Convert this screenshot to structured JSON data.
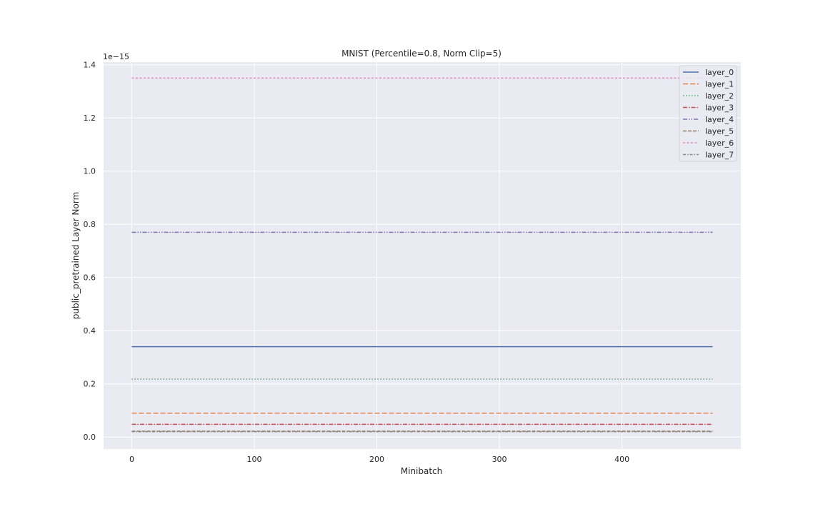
{
  "chart_data": {
    "type": "line",
    "title": "MNIST (Percentile=0.8, Norm Clip=5)",
    "xlabel": "Minibatch",
    "ylabel": "public_pretrained Layer Norm",
    "y_offset_text": "1e−15",
    "xlim": [
      -23,
      497
    ],
    "ylim": [
      -0.045,
      1.41
    ],
    "x_ticks": [
      0,
      100,
      200,
      300,
      400
    ],
    "y_ticks": [
      0.0,
      0.2,
      0.4,
      0.6,
      0.8,
      1.0,
      1.2,
      1.4
    ],
    "y_tick_labels": [
      "0.0",
      "0.2",
      "0.4",
      "0.6",
      "0.8",
      "1.0",
      "1.2",
      "1.4"
    ],
    "x_range": [
      0,
      474
    ],
    "grid": true,
    "legend_position": "top-right",
    "series": [
      {
        "name": "layer_0",
        "value": 0.34,
        "color": "#4c72b0",
        "dash": "solid"
      },
      {
        "name": "layer_1",
        "value": 0.09,
        "color": "#dd8452",
        "dash": "dashed"
      },
      {
        "name": "layer_2",
        "value": 0.218,
        "color": "#55a868",
        "dash": "dotted"
      },
      {
        "name": "layer_3",
        "value": 0.048,
        "color": "#c44e52",
        "dash": "dashdot"
      },
      {
        "name": "layer_4",
        "value": 0.77,
        "color": "#8172b3",
        "dash": "dashdotdot"
      },
      {
        "name": "layer_5",
        "value": 0.022,
        "color": "#937860",
        "dash": "longdash"
      },
      {
        "name": "layer_6",
        "value": 1.35,
        "color": "#da8bc3",
        "dash": "shortdash"
      },
      {
        "name": "layer_7",
        "value": 0.02,
        "color": "#8c8c8c",
        "dash": "dashdot2"
      }
    ]
  }
}
